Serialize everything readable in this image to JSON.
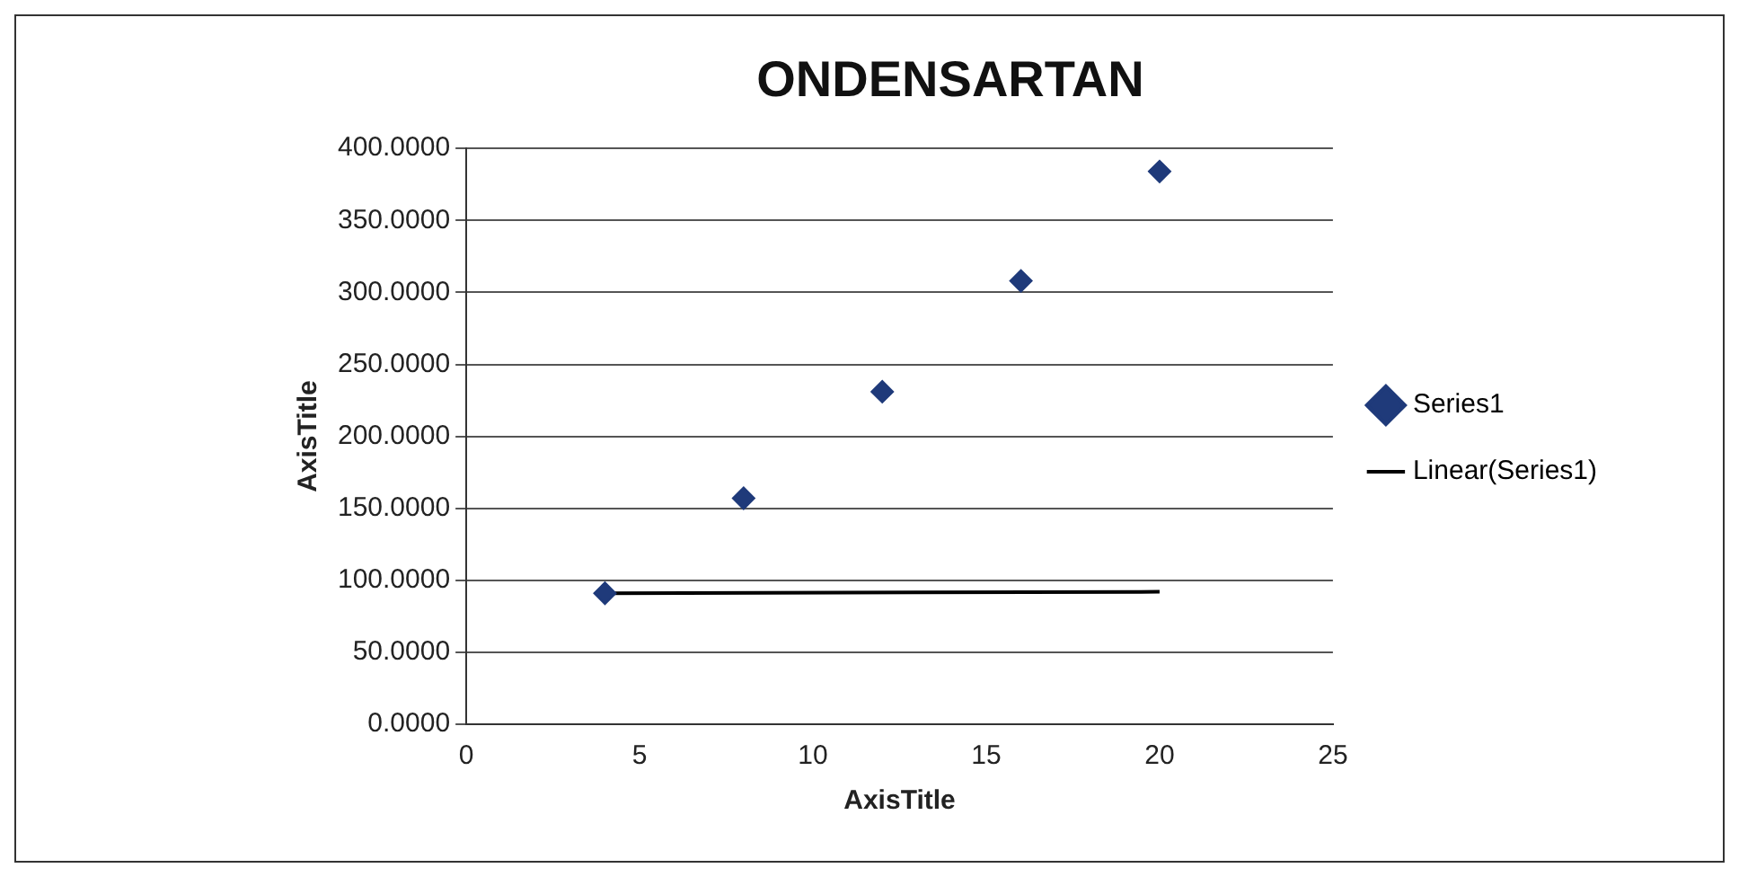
{
  "chart_data": {
    "type": "scatter",
    "title": "ONDENSARTAN",
    "xlabel": "AxisTitle",
    "ylabel": "AxisTitle",
    "xlim": [
      0,
      25
    ],
    "xticks": [
      0,
      5,
      10,
      15,
      20,
      25
    ],
    "ylim": [
      0,
      400
    ],
    "yticks": [
      {
        "value": 0,
        "label": "0.0000"
      },
      {
        "value": 50,
        "label": "50.0000"
      },
      {
        "value": 100,
        "label": "100.0000"
      },
      {
        "value": 150,
        "label": "150.0000"
      },
      {
        "value": 200,
        "label": "200.0000"
      },
      {
        "value": 250,
        "label": "250.0000"
      },
      {
        "value": 300,
        "label": "300.0000"
      },
      {
        "value": 350,
        "label": "350.0000"
      },
      {
        "value": 400,
        "label": "400.0000"
      }
    ],
    "grid": "y",
    "legend": "right",
    "marker": "diamond",
    "series": [
      {
        "name": "Series1",
        "color": "#1f3a7a",
        "x": [
          4,
          8,
          12,
          16,
          20
        ],
        "values": [
          91,
          157,
          231,
          308,
          384
        ]
      },
      {
        "name": "Linear(Series1)",
        "type": "line",
        "color": "#000000",
        "marker": "none",
        "x": [
          4,
          20
        ],
        "values": [
          91,
          92
        ]
      }
    ]
  }
}
